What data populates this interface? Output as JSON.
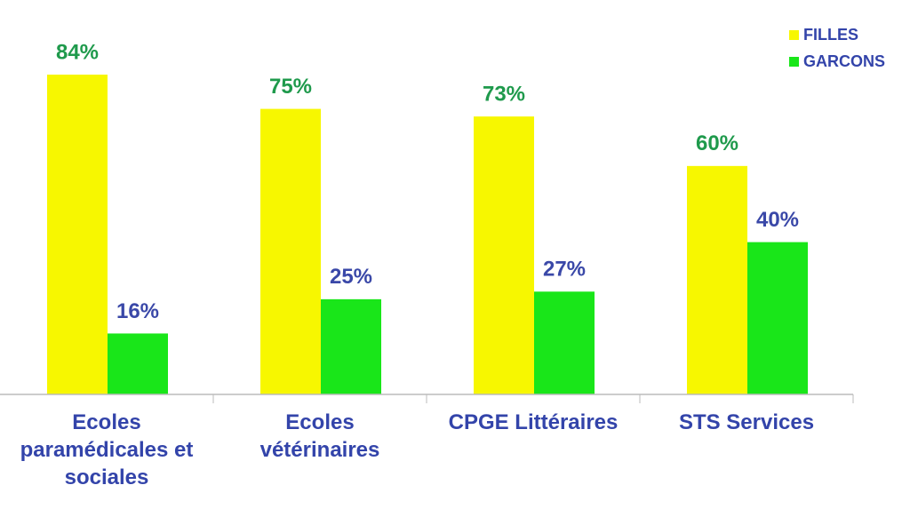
{
  "chart_data": {
    "type": "bar",
    "categories": [
      "Ecoles paramédicales et sociales",
      "Ecoles vétérinaires",
      "CPGE Littéraires",
      "STS Services"
    ],
    "series": [
      {
        "name": "FILLES",
        "color": "#f7f700",
        "label_color": "#1f9a4c",
        "values": [
          84,
          75,
          73,
          60
        ],
        "value_labels": [
          "84%",
          "75%",
          "73%",
          "60%"
        ]
      },
      {
        "name": "GARCONS",
        "color": "#19e619",
        "label_color": "#3a48a8",
        "values": [
          16,
          25,
          27,
          40
        ],
        "value_labels": [
          "16%",
          "25%",
          "27%",
          "40%"
        ]
      }
    ],
    "legend": "top-right"
  }
}
